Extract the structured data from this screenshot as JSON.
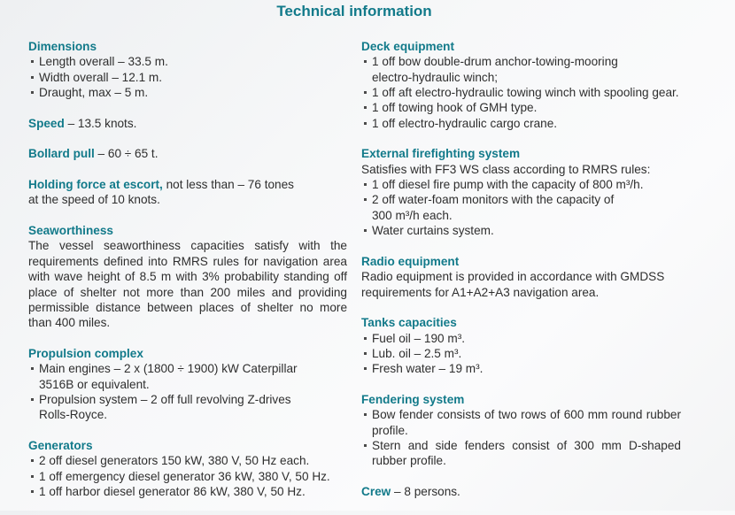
{
  "title": "Technical information",
  "left": {
    "dimensions": {
      "heading": "Dimensions",
      "items": [
        "Length overall  – 33.5 m.",
        "Width overall – 12.1 m.",
        "Draught, max – 5 m."
      ]
    },
    "speed": {
      "label": "Speed",
      "value": " – 13.5 knots."
    },
    "bollard": {
      "label": "Bollard pull",
      "value": " – 60 ÷ 65 t."
    },
    "holding": {
      "label": "Holding force at escort,",
      "value": " not less than – 76 tones at the speed of 10 knots."
    },
    "seaworthiness": {
      "heading": "Seaworthiness",
      "text": "The vessel seaworthiness capacities satisfy with the requirements defined into RMRS rules for navigation area with wave height of 8.5 m  with 3% probability standing off place of shelter not more than 200 miles and providing permissible distance between places of shelter no more than 400 miles."
    },
    "propulsion": {
      "heading": "Propulsion complex",
      "items": [
        "Main engines – 2 x (1800 ÷ 1900) kW Caterpillar 3516B or equivalent.",
        "Propulsion system –  2 off full revolving Z-drives Rolls-Royce."
      ]
    },
    "generators": {
      "heading": "Generators",
      "items": [
        "2 off diesel generators 150 kW, 380 V, 50 Hz each.",
        "1 off emergency diesel generator 36 kW, 380 V, 50 Hz.",
        "1 off harbor diesel generator 86 kW, 380 V, 50 Hz."
      ]
    }
  },
  "right": {
    "deck": {
      "heading": "Deck equipment",
      "items": [
        "1 off bow double-drum anchor-towing-mooring electro-hydraulic winch;",
        "1 off aft electro-hydraulic towing winch with spooling gear.",
        "1 off towing hook of GMH type.",
        "1 off electro-hydraulic cargo crane."
      ]
    },
    "firefighting": {
      "heading": "External firefighting system",
      "intro": "Satisfies with FF3 WS class according to RMRS rules:",
      "items": [
        "1 off diesel fire pump with the capacity of 800 m³/h.",
        "2 off water-foam monitors with the capacity of 300 m³/h each.",
        "Water curtains system."
      ]
    },
    "radio": {
      "heading": "Radio equipment",
      "text": "Radio equipment is provided in accordance with GMDSS requirements for A1+A2+A3 navigation area."
    },
    "tanks": {
      "heading": "Tanks capacities",
      "items": [
        "Fuel oil – 190 m³.",
        "Lub. oil – 2.5 m³.",
        "Fresh water – 19 m³."
      ]
    },
    "fendering": {
      "heading": "Fendering system",
      "items": [
        "Bow fender consists of two rows of 600 mm round rubber profile.",
        "Stern and side fenders consist of 300 mm D-shaped rubber profile."
      ]
    },
    "crew": {
      "label": "Crew",
      "value": " – 8 persons."
    }
  },
  "colors": {
    "heading": "#127a8a",
    "text": "#2e2e2e"
  }
}
